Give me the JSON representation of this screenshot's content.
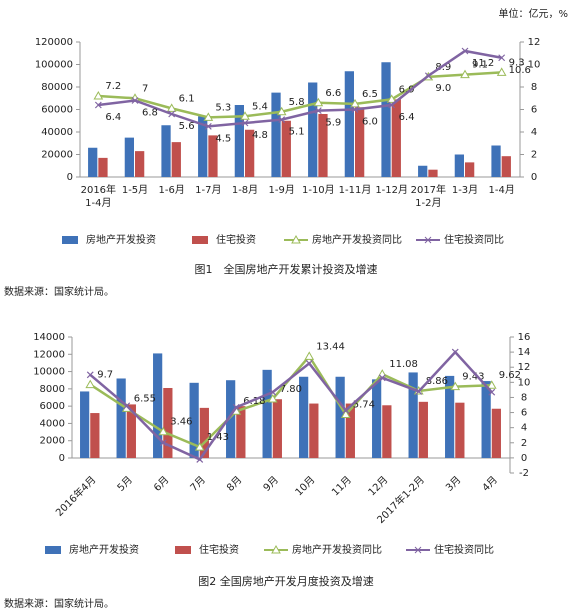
{
  "chart_data": [
    {
      "type": "combo",
      "title": "图1　全国房地产开发累计投资及增速",
      "note": "单位：亿元，%",
      "source": "数据来源：国家统计局。",
      "categories": [
        "2016年\n1-4月",
        "1-5月",
        "1-6月",
        "1-7月",
        "1-8月",
        "1-9月",
        "1-10月",
        "1-11月",
        "1-12月",
        "2017年\n1-2月",
        "1-3月",
        "1-4月"
      ],
      "ylim": [
        0,
        120000
      ],
      "yticks": [
        0,
        20000,
        40000,
        60000,
        80000,
        100000,
        120000
      ],
      "y2lim": [
        0,
        12
      ],
      "y2ticks": [
        0,
        2,
        4,
        6,
        8,
        10,
        12
      ],
      "series": [
        {
          "name": "房地产开发投资",
          "type": "bar",
          "color": "#3f72b8",
          "values": [
            26000,
            35000,
            46000,
            54000,
            64000,
            75000,
            84000,
            94000,
            102000,
            10000,
            20000,
            28000
          ]
        },
        {
          "name": "住宅投资",
          "type": "bar",
          "color": "#c0504d",
          "values": [
            17000,
            23000,
            31000,
            37000,
            42000,
            50000,
            56000,
            62000,
            69000,
            6500,
            13000,
            18500
          ]
        },
        {
          "name": "房地产开发投资同比",
          "type": "line",
          "axis": "y2",
          "marker": "triangle",
          "color": "#9bbb59",
          "values": [
            7.2,
            7,
            6.1,
            5.3,
            5.4,
            5.8,
            6.6,
            6.5,
            6.9,
            8.9,
            9.1,
            9.3
          ],
          "value_labels": [
            "7.2",
            "7",
            "6.1",
            "5.3",
            "5.4",
            "5.8",
            "6.6",
            "6.5",
            "6.9",
            "8.9",
            "9.1",
            "9.3"
          ]
        },
        {
          "name": "住宅投资同比",
          "type": "line",
          "axis": "y2",
          "marker": "x",
          "color": "#8064a2",
          "values": [
            6.4,
            6.8,
            5.6,
            4.5,
            4.8,
            5.1,
            5.9,
            6.0,
            6.4,
            9.0,
            11.2,
            10.6
          ],
          "value_labels": [
            "6.4",
            "6.8",
            "5.6",
            "4.5",
            "4.8",
            "5.1",
            "5.9",
            "6.0",
            "6.4",
            "9.0",
            "11.2",
            "10.6"
          ]
        }
      ]
    },
    {
      "type": "combo",
      "title": "图2 全国房地产开发月度投资及增速",
      "source": "数据来源：国家统计局。",
      "categories": [
        "2016年4月",
        "5月",
        "6月",
        "7月",
        "8月",
        "9月",
        "10月",
        "11月",
        "12月",
        "2017年1-2月",
        "3月",
        "4月"
      ],
      "ylim": [
        0,
        14000
      ],
      "yticks": [
        0,
        2000,
        4000,
        6000,
        8000,
        10000,
        12000,
        14000
      ],
      "y2lim": [
        -2,
        16
      ],
      "y2ticks": [
        -2,
        0,
        2,
        4,
        6,
        8,
        10,
        12,
        14,
        16
      ],
      "series": [
        {
          "name": "房地产开发投资",
          "type": "bar",
          "color": "#3f72b8",
          "values": [
            7700,
            9200,
            12100,
            8700,
            9000,
            10200,
            9400,
            9400,
            9100,
            9900,
            9500,
            8900
          ]
        },
        {
          "name": "住宅投资",
          "type": "bar",
          "color": "#c0504d",
          "values": [
            5200,
            6200,
            8100,
            5800,
            6000,
            6800,
            6300,
            6300,
            6100,
            6500,
            6400,
            5700
          ]
        },
        {
          "name": "房地产开发投资同比",
          "type": "line",
          "axis": "y2",
          "marker": "triangle",
          "color": "#9bbb59",
          "values": [
            9.7,
            6.55,
            3.46,
            1.43,
            6.18,
            7.8,
            13.44,
            5.74,
            11.08,
            8.86,
            9.43,
            9.62
          ],
          "value_labels": [
            "9.7",
            "6.55",
            "3.46",
            "1.43",
            "6.18",
            "7.80",
            "13.44",
            "5.74",
            "11.08",
            "8.86",
            "9.43",
            "9.62"
          ]
        },
        {
          "name": "住宅投资同比",
          "type": "line",
          "axis": "y2",
          "marker": "x",
          "color": "#8064a2",
          "values": [
            11,
            6.9,
            2,
            -0.2,
            6.7,
            8.7,
            12.5,
            6.3,
            10.6,
            8.8,
            14,
            8.7
          ]
        }
      ]
    }
  ]
}
